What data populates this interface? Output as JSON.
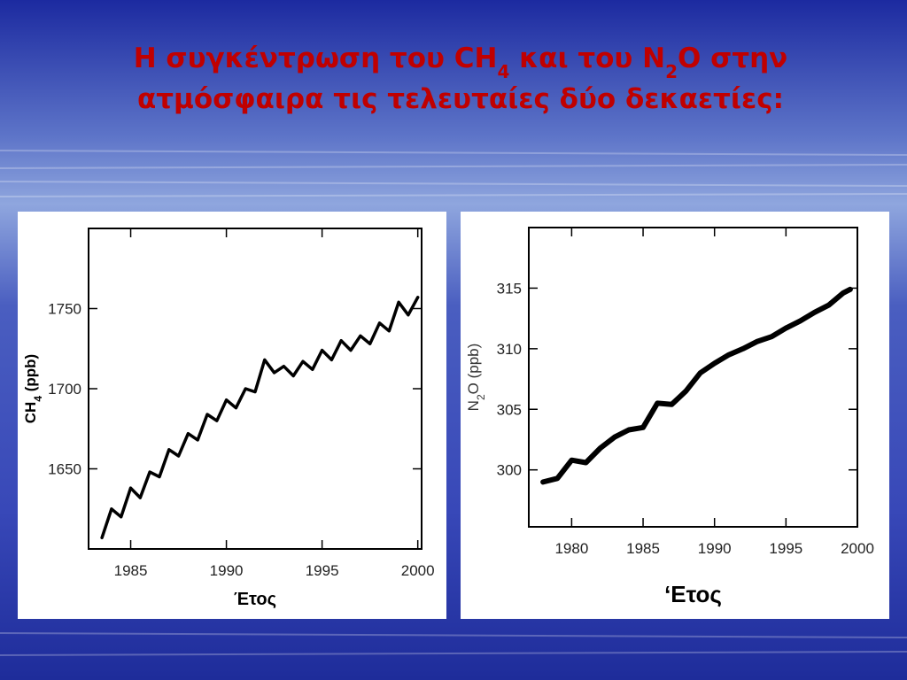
{
  "slide": {
    "title": [
      [
        "Η συγκέντρωση του CH",
        "4",
        " και του N",
        "2",
        "O  στην"
      ],
      [
        "ατμόσφαιρα τις τελευταίες δύο δεκαετίες:"
      ]
    ]
  },
  "chart_data": [
    {
      "type": "line",
      "xlabel": "Έτος",
      "ylabel": [
        "CH",
        "4",
        " (ppb)"
      ],
      "x": [
        1983.5,
        1984,
        1984.5,
        1985,
        1985.5,
        1986,
        1986.5,
        1987,
        1987.5,
        1988,
        1988.5,
        1989,
        1989.5,
        1990,
        1990.5,
        1991,
        1991.5,
        1992,
        1992.5,
        1993,
        1993.5,
        1994,
        1994.5,
        1995,
        1995.5,
        1996,
        1996.5,
        1997,
        1997.5,
        1998,
        1998.5,
        1999,
        1999.5,
        2000
      ],
      "series": [
        {
          "name": "CH4",
          "color": "#000000",
          "values": [
            1607,
            1625,
            1620,
            1638,
            1632,
            1648,
            1645,
            1662,
            1658,
            1672,
            1668,
            1684,
            1680,
            1693,
            1688,
            1700,
            1698,
            1718,
            1710,
            1714,
            1708,
            1717,
            1712,
            1724,
            1718,
            1730,
            1724,
            1733,
            1728,
            1741,
            1736,
            1754,
            1746,
            1757
          ]
        }
      ],
      "xlim": [
        1982.8,
        2000.2
      ],
      "xticks": [
        1985,
        1990,
        1995,
        2000
      ],
      "ylim": [
        1600,
        1800
      ],
      "yticks": [
        1650,
        1700,
        1750
      ]
    },
    {
      "type": "line",
      "xlabel": "‘Ετος",
      "ylabel": [
        "N",
        "2",
        "O (ppb)"
      ],
      "x": [
        1978,
        1979,
        1980,
        1981,
        1982,
        1983,
        1984,
        1985,
        1986,
        1987,
        1988,
        1989,
        1990,
        1991,
        1992,
        1993,
        1994,
        1995,
        1996,
        1997,
        1998,
        1999,
        1999.5
      ],
      "series": [
        {
          "name": "N2O",
          "color": "#000000",
          "values": [
            299.0,
            299.3,
            300.8,
            300.6,
            301.8,
            302.7,
            303.3,
            303.5,
            305.5,
            305.4,
            306.5,
            308.0,
            308.8,
            309.5,
            310.0,
            310.6,
            311.0,
            311.7,
            312.3,
            313.0,
            313.6,
            314.6,
            314.9
          ]
        }
      ],
      "xlim": [
        1977,
        2000
      ],
      "xticks": [
        1980,
        1985,
        1990,
        1995,
        2000
      ],
      "ylim": [
        295.3,
        320
      ],
      "yticks": [
        300,
        305,
        310,
        315
      ]
    }
  ]
}
